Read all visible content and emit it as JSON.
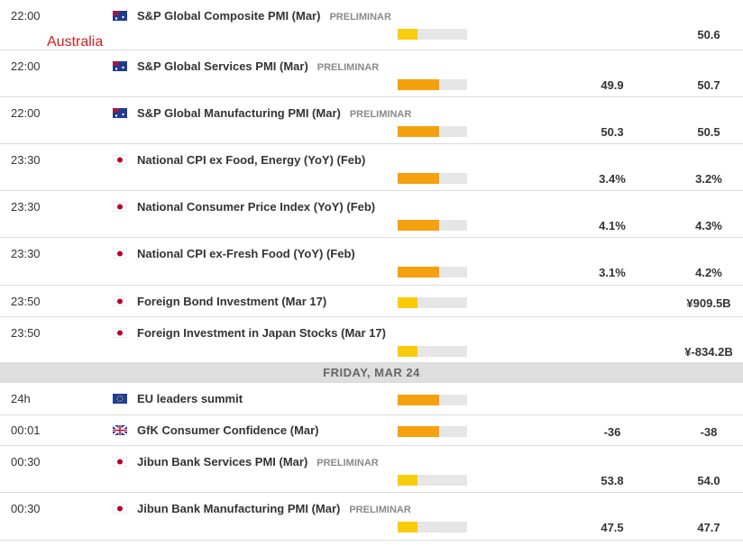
{
  "annotation": "Australia",
  "rows": [
    {
      "time": "22:00",
      "country": "au",
      "event": "S&P Global Composite PMI (Mar)",
      "tag": "PRELIMINAR",
      "impact": "low",
      "consensus": null,
      "previous": "50.6"
    },
    {
      "time": "22:00",
      "country": "au",
      "event": "S&P Global Services PMI (Mar)",
      "tag": "PRELIMINAR",
      "impact": "medium",
      "consensus": "49.9",
      "previous": "50.7"
    },
    {
      "time": "22:00",
      "country": "au",
      "event": "S&P Global Manufacturing PMI (Mar)",
      "tag": "PRELIMINAR",
      "impact": "medium",
      "consensus": "50.3",
      "previous": "50.5"
    },
    {
      "time": "23:30",
      "country": "jp",
      "event": "National CPI ex Food, Energy (YoY) (Feb)",
      "tag": null,
      "impact": "medium",
      "consensus": "3.4%",
      "previous": "3.2%"
    },
    {
      "time": "23:30",
      "country": "jp",
      "event": "National Consumer Price Index (YoY) (Feb)",
      "tag": null,
      "impact": "medium",
      "consensus": "4.1%",
      "previous": "4.3%"
    },
    {
      "time": "23:30",
      "country": "jp",
      "event": "National CPI ex-Fresh Food (YoY) (Feb)",
      "tag": null,
      "impact": "medium",
      "consensus": "3.1%",
      "previous": "4.2%"
    },
    {
      "time": "23:50",
      "country": "jp",
      "event": "Foreign Bond Investment (Mar 17)",
      "tag": null,
      "impact": "low",
      "consensus": null,
      "previous": "¥909.5B"
    },
    {
      "time": "23:50",
      "country": "jp",
      "event": "Foreign Investment in Japan Stocks (Mar 17)",
      "tag": null,
      "impact": "low",
      "consensus": null,
      "previous": "¥-834.2B"
    },
    {
      "day": "FRIDAY, MAR 24"
    },
    {
      "time": "24h",
      "country": "eu",
      "event": "EU leaders summit",
      "tag": null,
      "impact": "medium",
      "consensus": null,
      "previous": null
    },
    {
      "time": "00:01",
      "country": "gb",
      "event": "GfK Consumer Confidence (Mar)",
      "tag": null,
      "impact": "medium",
      "consensus": "-36",
      "previous": "-38"
    },
    {
      "time": "00:30",
      "country": "jp",
      "event": "Jibun Bank Services PMI (Mar)",
      "tag": "PRELIMINAR",
      "impact": "low",
      "consensus": "53.8",
      "previous": "54.0"
    },
    {
      "time": "00:30",
      "country": "jp",
      "event": "Jibun Bank Manufacturing PMI (Mar)",
      "tag": "PRELIMINAR",
      "impact": "low",
      "consensus": "47.5",
      "previous": "47.7"
    }
  ]
}
